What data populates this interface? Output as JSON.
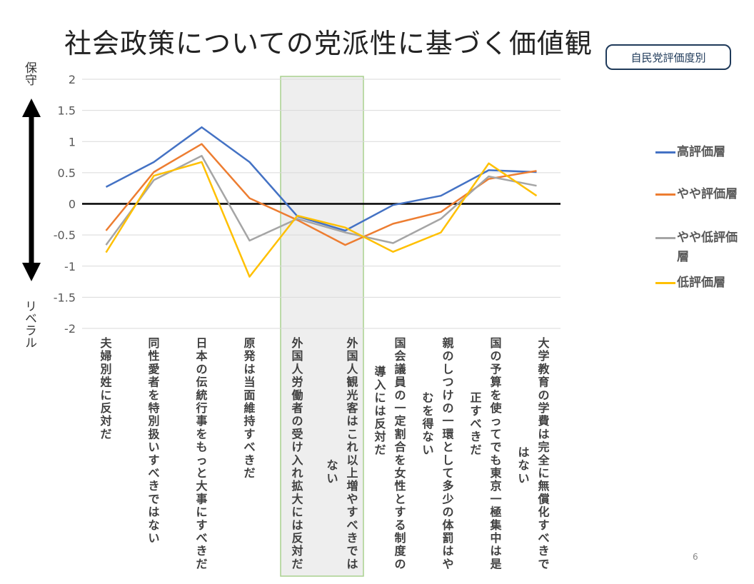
{
  "slide": {
    "title": "社会政策についての党派性に基づく価値観",
    "badge": "自民党評価度別",
    "label_conservative": "保守",
    "label_liberal": "リベラル",
    "page_number": "6"
  },
  "colors": {
    "highlight_fill": "#d9d9d9",
    "highlight_stroke": "#a9d18e",
    "zero_line": "#000000"
  },
  "chart_data": {
    "type": "line",
    "ylim": [
      -2,
      2
    ],
    "yticks": [
      "2",
      "1.5",
      "1",
      "0.5",
      "0",
      "-0.5",
      "-1",
      "-1.5",
      "-2"
    ],
    "categories": [
      [
        "夫婦別姓に反対だ"
      ],
      [
        "同性愛者を特別扱いすべきではない"
      ],
      [
        "日本の伝統行事をもっと大事にすべきだ"
      ],
      [
        "原発は当面維持すべきだ"
      ],
      [
        "外国人労働者の受け入れ拡大には反対だ"
      ],
      [
        "外国人観光客はこれ以上増やすべきでは",
        "ない"
      ],
      [
        "国会議員の一定割合を女性とする制度の",
        "導入には反対だ"
      ],
      [
        "親のしつけの一環として多少の体罰はや",
        "むを得ない"
      ],
      [
        "国の予算を使ってでも東京一極集中は是",
        "正すべきだ"
      ],
      [
        "大学教育の学費は完全に無償化すべきで",
        "はない"
      ]
    ],
    "highlight_categories": [
      4,
      5
    ],
    "series": [
      {
        "name": "高評価層",
        "color": "#4472c4",
        "values": [
          0.27,
          0.67,
          1.23,
          0.67,
          -0.2,
          -0.43,
          -0.02,
          0.13,
          0.54,
          0.51
        ]
      },
      {
        "name": "やや評価層",
        "color": "#ed7d31",
        "values": [
          -0.43,
          0.51,
          0.96,
          0.09,
          -0.26,
          -0.66,
          -0.32,
          -0.13,
          0.4,
          0.53
        ]
      },
      {
        "name": "やや低評価層",
        "color": "#a5a5a5",
        "values": [
          -0.66,
          0.38,
          0.77,
          -0.59,
          -0.24,
          -0.46,
          -0.63,
          -0.24,
          0.44,
          0.29
        ]
      },
      {
        "name": "低評価層",
        "color": "#ffc000",
        "values": [
          -0.78,
          0.45,
          0.67,
          -1.17,
          -0.19,
          -0.38,
          -0.77,
          -0.46,
          0.65,
          0.13
        ]
      }
    ]
  }
}
